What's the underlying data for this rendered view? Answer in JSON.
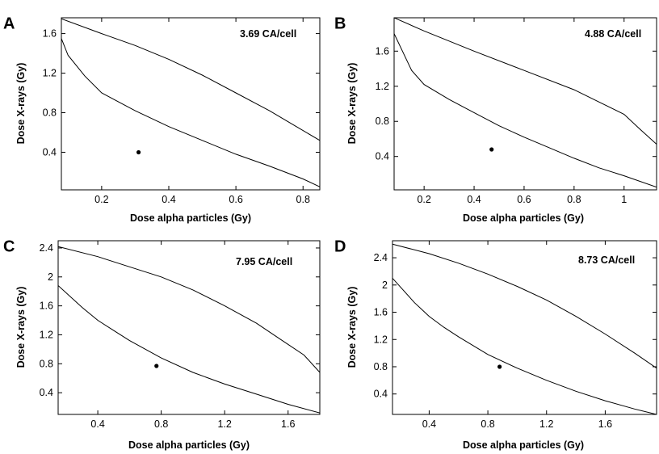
{
  "figure": {
    "panel_count": 4
  },
  "chart_data": [
    {
      "type": "line",
      "panel": "A",
      "annotation": "3.69 CA/cell",
      "xlabel": "Dose alpha particles (Gy)",
      "ylabel": "Dose X-rays (Gy)",
      "xlim": [
        0.08,
        0.85
      ],
      "ylim": [
        0.02,
        1.76
      ],
      "xticks": [
        0.2,
        0.4,
        0.6,
        0.8
      ],
      "xtick_labels": [
        "0.2",
        "0.4",
        "0.6",
        "0.8"
      ],
      "yticks": [
        0.4,
        0.8,
        1.2,
        1.6
      ],
      "ytick_labels": [
        "0.4",
        "0.8",
        "1.2",
        "1.6"
      ],
      "series": [
        {
          "name": "upper confidence boundary",
          "x": [
            0.08,
            0.2,
            0.3,
            0.4,
            0.5,
            0.6,
            0.7,
            0.78,
            0.85
          ],
          "y": [
            1.75,
            1.6,
            1.48,
            1.34,
            1.18,
            1.0,
            0.82,
            0.66,
            0.52
          ]
        },
        {
          "name": "lower confidence boundary",
          "x": [
            0.08,
            0.1,
            0.15,
            0.2,
            0.3,
            0.4,
            0.5,
            0.6,
            0.7,
            0.8,
            0.85
          ],
          "y": [
            1.55,
            1.38,
            1.17,
            1.0,
            0.82,
            0.66,
            0.52,
            0.38,
            0.26,
            0.13,
            0.05
          ]
        },
        {
          "name": "measured point",
          "marker": "dot",
          "x": [
            0.31
          ],
          "y": [
            0.4
          ]
        }
      ]
    },
    {
      "type": "line",
      "panel": "B",
      "annotation": "4.88 CA/cell",
      "xlabel": "Dose alpha particles (Gy)",
      "ylabel": "Dose X-rays (Gy)",
      "xlim": [
        0.08,
        1.13
      ],
      "ylim": [
        0.02,
        1.98
      ],
      "xticks": [
        0.2,
        0.4,
        0.6,
        0.8,
        1.0
      ],
      "xtick_labels": [
        "0.2",
        "0.4",
        "0.6",
        "0.8",
        "1"
      ],
      "yticks": [
        0.4,
        0.8,
        1.2,
        1.6
      ],
      "ytick_labels": [
        "0.4",
        "0.8",
        "1.2",
        "1.6"
      ],
      "series": [
        {
          "name": "upper confidence boundary",
          "x": [
            0.08,
            0.2,
            0.4,
            0.6,
            0.8,
            0.9,
            1.0,
            1.06,
            1.13
          ],
          "y": [
            1.98,
            1.83,
            1.6,
            1.38,
            1.16,
            1.02,
            0.88,
            0.72,
            0.54
          ]
        },
        {
          "name": "lower confidence boundary",
          "x": [
            0.08,
            0.15,
            0.2,
            0.3,
            0.4,
            0.5,
            0.6,
            0.7,
            0.8,
            0.9,
            1.0,
            1.13
          ],
          "y": [
            1.8,
            1.38,
            1.22,
            1.05,
            0.9,
            0.75,
            0.62,
            0.5,
            0.38,
            0.27,
            0.18,
            0.05
          ]
        },
        {
          "name": "measured point",
          "marker": "dot",
          "x": [
            0.47
          ],
          "y": [
            0.48
          ]
        }
      ]
    },
    {
      "type": "line",
      "panel": "C",
      "annotation": "7.95 CA/cell",
      "xlabel": "Dose alpha particles (Gy)",
      "ylabel": "Dose X-rays (Gy)",
      "xlim": [
        0.15,
        1.8
      ],
      "ylim": [
        0.1,
        2.5
      ],
      "xticks": [
        0.4,
        0.8,
        1.2,
        1.6
      ],
      "xtick_labels": [
        "0.4",
        "0.8",
        "1.2",
        "1.6"
      ],
      "yticks": [
        0.4,
        0.8,
        1.2,
        1.6,
        2.0,
        2.4
      ],
      "ytick_labels": [
        "0.4",
        "0.8",
        "1.2",
        "1.6",
        "2",
        "2.4"
      ],
      "series": [
        {
          "name": "upper confidence boundary",
          "x": [
            0.15,
            0.4,
            0.6,
            0.8,
            1.0,
            1.2,
            1.4,
            1.55,
            1.7,
            1.8
          ],
          "y": [
            2.42,
            2.28,
            2.14,
            2.0,
            1.82,
            1.6,
            1.36,
            1.14,
            0.92,
            0.68
          ]
        },
        {
          "name": "lower confidence boundary",
          "x": [
            0.15,
            0.3,
            0.4,
            0.5,
            0.6,
            0.8,
            1.0,
            1.2,
            1.4,
            1.6,
            1.8
          ],
          "y": [
            1.88,
            1.58,
            1.4,
            1.26,
            1.12,
            0.88,
            0.68,
            0.52,
            0.38,
            0.24,
            0.12
          ]
        },
        {
          "name": "measured point",
          "marker": "dot",
          "x": [
            0.77
          ],
          "y": [
            0.77
          ]
        }
      ]
    },
    {
      "type": "line",
      "panel": "D",
      "annotation": "8.73 CA/cell",
      "xlabel": "Dose alpha particles (Gy)",
      "ylabel": "Dose X-rays (Gy)",
      "xlim": [
        0.15,
        1.95
      ],
      "ylim": [
        0.1,
        2.65
      ],
      "xticks": [
        0.4,
        0.8,
        1.2,
        1.6
      ],
      "xtick_labels": [
        "0.4",
        "0.8",
        "1.2",
        "1.6"
      ],
      "yticks": [
        0.4,
        0.8,
        1.2,
        1.6,
        2.0,
        2.4
      ],
      "ytick_labels": [
        "0.4",
        "0.8",
        "1.2",
        "1.6",
        "2",
        "2.4"
      ],
      "series": [
        {
          "name": "upper confidence boundary",
          "x": [
            0.15,
            0.4,
            0.6,
            0.8,
            1.0,
            1.2,
            1.4,
            1.6,
            1.8,
            1.95
          ],
          "y": [
            2.6,
            2.46,
            2.32,
            2.16,
            1.98,
            1.78,
            1.54,
            1.28,
            1.0,
            0.78
          ]
        },
        {
          "name": "lower confidence boundary",
          "x": [
            0.15,
            0.3,
            0.4,
            0.5,
            0.6,
            0.8,
            1.0,
            1.2,
            1.4,
            1.6,
            1.8,
            1.95
          ],
          "y": [
            2.1,
            1.74,
            1.54,
            1.38,
            1.24,
            0.98,
            0.78,
            0.6,
            0.44,
            0.3,
            0.18,
            0.1
          ]
        },
        {
          "name": "measured point",
          "marker": "dot",
          "x": [
            0.88
          ],
          "y": [
            0.8
          ]
        }
      ]
    }
  ]
}
